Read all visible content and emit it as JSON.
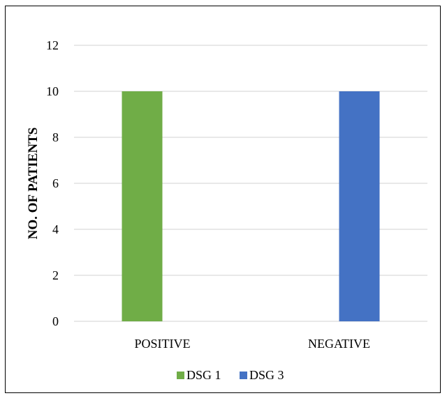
{
  "chart_data": {
    "type": "bar",
    "categories": [
      "POSITIVE",
      "NEGATIVE"
    ],
    "series": [
      {
        "name": "DSG 1",
        "values": [
          10,
          0
        ],
        "color": "#70AD47"
      },
      {
        "name": "DSG 3",
        "values": [
          0,
          10
        ],
        "color": "#4472C4"
      }
    ],
    "title": "",
    "xlabel": "",
    "ylabel": "NO. OF PATIENTS",
    "ylim": [
      0,
      12
    ],
    "yticks": [
      0,
      2,
      4,
      6,
      8,
      10,
      12
    ],
    "grid": true,
    "legend_position": "bottom",
    "gridline_color": "#d9d9d9"
  }
}
